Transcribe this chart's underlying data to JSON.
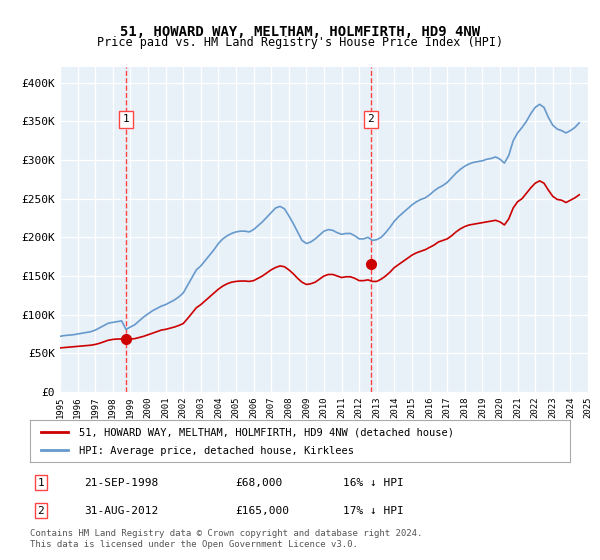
{
  "title": "51, HOWARD WAY, MELTHAM, HOLMFIRTH, HD9 4NW",
  "subtitle": "Price paid vs. HM Land Registry's House Price Index (HPI)",
  "legend_line1": "51, HOWARD WAY, MELTHAM, HOLMFIRTH, HD9 4NW (detached house)",
  "legend_line2": "HPI: Average price, detached house, Kirklees",
  "transaction1_label": "1",
  "transaction1_date": "21-SEP-1998",
  "transaction1_price": "£68,000",
  "transaction1_hpi": "16% ↓ HPI",
  "transaction2_label": "2",
  "transaction2_date": "31-AUG-2012",
  "transaction2_price": "£165,000",
  "transaction2_hpi": "17% ↓ HPI",
  "footnote": "Contains HM Land Registry data © Crown copyright and database right 2024.\nThis data is licensed under the Open Government Licence v3.0.",
  "red_color": "#cc0000",
  "blue_color": "#6699cc",
  "bg_color": "#e8f0f8",
  "grid_color": "#ffffff",
  "marker_color": "#cc0000",
  "vline_color": "#ff4444",
  "ylim_min": 0,
  "ylim_max": 420000,
  "yticks": [
    0,
    50000,
    100000,
    150000,
    200000,
    250000,
    300000,
    350000,
    400000
  ],
  "ytick_labels": [
    "£0",
    "£50K",
    "£100K",
    "£150K",
    "£200K",
    "£250K",
    "£300K",
    "£350K",
    "£400K"
  ],
  "hpi_data": {
    "years": [
      1995.0,
      1995.25,
      1995.5,
      1995.75,
      1996.0,
      1996.25,
      1996.5,
      1996.75,
      1997.0,
      1997.25,
      1997.5,
      1997.75,
      1998.0,
      1998.25,
      1998.5,
      1998.75,
      1999.0,
      1999.25,
      1999.5,
      1999.75,
      2000.0,
      2000.25,
      2000.5,
      2000.75,
      2001.0,
      2001.25,
      2001.5,
      2001.75,
      2002.0,
      2002.25,
      2002.5,
      2002.75,
      2003.0,
      2003.25,
      2003.5,
      2003.75,
      2004.0,
      2004.25,
      2004.5,
      2004.75,
      2005.0,
      2005.25,
      2005.5,
      2005.75,
      2006.0,
      2006.25,
      2006.5,
      2006.75,
      2007.0,
      2007.25,
      2007.5,
      2007.75,
      2008.0,
      2008.25,
      2008.5,
      2008.75,
      2009.0,
      2009.25,
      2009.5,
      2009.75,
      2010.0,
      2010.25,
      2010.5,
      2010.75,
      2011.0,
      2011.25,
      2011.5,
      2011.75,
      2012.0,
      2012.25,
      2012.5,
      2012.75,
      2013.0,
      2013.25,
      2013.5,
      2013.75,
      2014.0,
      2014.25,
      2014.5,
      2014.75,
      2015.0,
      2015.25,
      2015.5,
      2015.75,
      2016.0,
      2016.25,
      2016.5,
      2016.75,
      2017.0,
      2017.25,
      2017.5,
      2017.75,
      2018.0,
      2018.25,
      2018.5,
      2018.75,
      2019.0,
      2019.25,
      2019.5,
      2019.75,
      2020.0,
      2020.25,
      2020.5,
      2020.75,
      2021.0,
      2021.25,
      2021.5,
      2021.75,
      2022.0,
      2022.25,
      2022.5,
      2022.75,
      2023.0,
      2023.25,
      2023.5,
      2023.75,
      2024.0,
      2024.25,
      2024.5
    ],
    "values": [
      72000,
      73000,
      73500,
      74000,
      75000,
      76000,
      77000,
      78000,
      80000,
      83000,
      86000,
      89000,
      90000,
      91000,
      92000,
      81000,
      84000,
      87000,
      92000,
      97000,
      101000,
      105000,
      108000,
      111000,
      113000,
      116000,
      119000,
      123000,
      128000,
      138000,
      148000,
      158000,
      163000,
      170000,
      177000,
      184000,
      192000,
      198000,
      202000,
      205000,
      207000,
      208000,
      208000,
      207000,
      210000,
      215000,
      220000,
      226000,
      232000,
      238000,
      240000,
      237000,
      228000,
      218000,
      207000,
      196000,
      192000,
      194000,
      198000,
      203000,
      208000,
      210000,
      209000,
      206000,
      204000,
      205000,
      205000,
      202000,
      198000,
      198000,
      200000,
      196000,
      197000,
      200000,
      206000,
      213000,
      221000,
      227000,
      232000,
      237000,
      242000,
      246000,
      249000,
      251000,
      255000,
      260000,
      264000,
      267000,
      271000,
      277000,
      283000,
      288000,
      292000,
      295000,
      297000,
      298000,
      299000,
      301000,
      302000,
      304000,
      301000,
      296000,
      306000,
      325000,
      335000,
      342000,
      350000,
      360000,
      368000,
      372000,
      368000,
      355000,
      345000,
      340000,
      338000,
      335000,
      338000,
      342000,
      348000
    ]
  },
  "red_data": {
    "years": [
      1995.0,
      1995.25,
      1995.5,
      1995.75,
      1996.0,
      1996.25,
      1996.5,
      1996.75,
      1997.0,
      1997.25,
      1997.5,
      1997.75,
      1998.0,
      1998.25,
      1998.5,
      1998.75,
      1999.0,
      1999.25,
      1999.5,
      1999.75,
      2000.0,
      2000.25,
      2000.5,
      2000.75,
      2001.0,
      2001.25,
      2001.5,
      2001.75,
      2002.0,
      2002.25,
      2002.5,
      2002.75,
      2003.0,
      2003.25,
      2003.5,
      2003.75,
      2004.0,
      2004.25,
      2004.5,
      2004.75,
      2005.0,
      2005.25,
      2005.5,
      2005.75,
      2006.0,
      2006.25,
      2006.5,
      2006.75,
      2007.0,
      2007.25,
      2007.5,
      2007.75,
      2008.0,
      2008.25,
      2008.5,
      2008.75,
      2009.0,
      2009.25,
      2009.5,
      2009.75,
      2010.0,
      2010.25,
      2010.5,
      2010.75,
      2011.0,
      2011.25,
      2011.5,
      2011.75,
      2012.0,
      2012.25,
      2012.5,
      2012.75,
      2013.0,
      2013.25,
      2013.5,
      2013.75,
      2014.0,
      2014.25,
      2014.5,
      2014.75,
      2015.0,
      2015.25,
      2015.5,
      2015.75,
      2016.0,
      2016.25,
      2016.5,
      2016.75,
      2017.0,
      2017.25,
      2017.5,
      2017.75,
      2018.0,
      2018.25,
      2018.5,
      2018.75,
      2019.0,
      2019.25,
      2019.5,
      2019.75,
      2020.0,
      2020.25,
      2020.5,
      2020.75,
      2021.0,
      2021.25,
      2021.5,
      2021.75,
      2022.0,
      2022.25,
      2022.5,
      2022.75,
      2023.0,
      2023.25,
      2023.5,
      2023.75,
      2024.0,
      2024.25,
      2024.5
    ],
    "values": [
      57000,
      57500,
      58000,
      58500,
      59000,
      59500,
      60000,
      60500,
      61500,
      63000,
      65000,
      67000,
      68000,
      68500,
      68500,
      68000,
      68500,
      69000,
      70500,
      72000,
      74000,
      76000,
      78000,
      80000,
      81000,
      82500,
      84000,
      86000,
      88500,
      95000,
      102000,
      109000,
      113000,
      118000,
      123000,
      128000,
      133000,
      137000,
      140000,
      142000,
      143000,
      143500,
      143500,
      143000,
      144000,
      147000,
      150000,
      154000,
      158000,
      161000,
      163000,
      162000,
      158000,
      153000,
      147000,
      142000,
      139000,
      140000,
      142000,
      146000,
      150000,
      152000,
      152000,
      150000,
      148000,
      149000,
      149000,
      147000,
      144000,
      144000,
      145000,
      143000,
      143000,
      146000,
      150000,
      155000,
      161000,
      165000,
      169000,
      173000,
      177000,
      180000,
      182000,
      184000,
      187000,
      190000,
      194000,
      196000,
      198000,
      202000,
      207000,
      211000,
      214000,
      216000,
      217000,
      218000,
      219000,
      220000,
      221000,
      222000,
      220000,
      216000,
      224000,
      238000,
      246000,
      250000,
      257000,
      264000,
      270000,
      273000,
      270000,
      261000,
      253000,
      249000,
      248000,
      245000,
      248000,
      251000,
      255000
    ]
  },
  "transaction1_year": 1998.75,
  "transaction2_year": 2012.67,
  "transaction1_value": 68000,
  "transaction2_value": 165000,
  "xmin": 1995,
  "xmax": 2025
}
